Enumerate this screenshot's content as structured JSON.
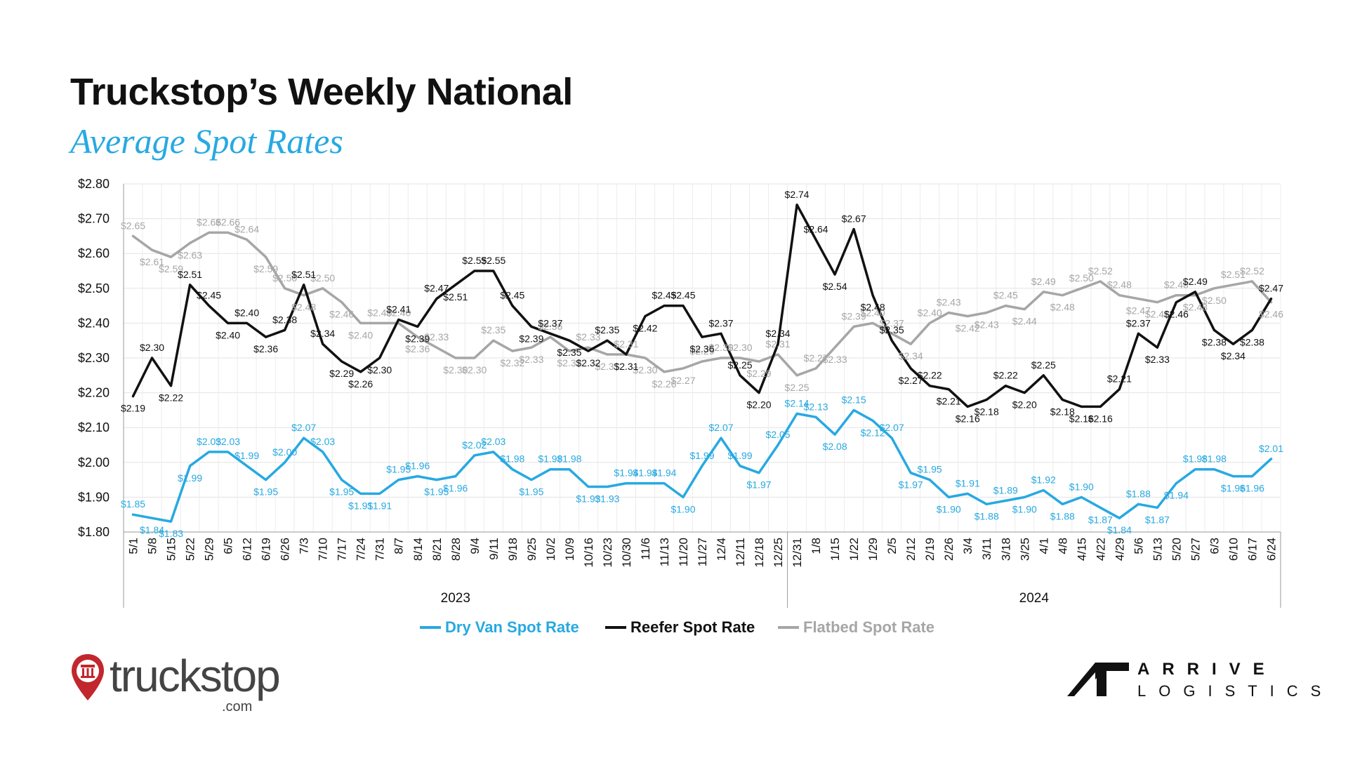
{
  "title": "Truckstop’s Weekly National",
  "subtitle": "Average Spot Rates",
  "colors": {
    "dry_van": "#27a9e1",
    "reefer": "#111111",
    "flatbed": "#a6a6a6"
  },
  "logos": {
    "truckstop_text": "truckstop",
    "truckstop_com": ".com",
    "arrive": "ARRIVE",
    "logistics": "LOGISTICS"
  },
  "chart_data": {
    "type": "line",
    "title": "Truckstop’s Weekly National Average Spot Rates",
    "xlabel": "",
    "ylabel": "",
    "ylim": [
      1.8,
      2.8
    ],
    "yticks": [
      "$1.80",
      "$1.90",
      "$2.00",
      "$2.10",
      "$2.20",
      "$2.30",
      "$2.40",
      "$2.50",
      "$2.60",
      "$2.70",
      "$2.80"
    ],
    "grid": true,
    "legend_position": "bottom",
    "categories": [
      "5/1",
      "5/8",
      "5/15",
      "5/22",
      "5/29",
      "6/5",
      "6/12",
      "6/19",
      "6/26",
      "7/3",
      "7/10",
      "7/17",
      "7/24",
      "7/31",
      "8/7",
      "8/14",
      "8/21",
      "8/28",
      "9/4",
      "9/11",
      "9/18",
      "9/25",
      "10/2",
      "10/9",
      "10/16",
      "10/23",
      "10/30",
      "11/6",
      "11/13",
      "11/20",
      "11/27",
      "12/4",
      "12/11",
      "12/18",
      "12/25",
      "12/31",
      "1/8",
      "1/15",
      "1/22",
      "1/29",
      "2/5",
      "2/12",
      "2/19",
      "2/26",
      "3/4",
      "3/11",
      "3/18",
      "3/25",
      "4/1",
      "4/8",
      "4/15",
      "4/22",
      "4/29",
      "5/6",
      "5/13",
      "5/20",
      "5/27",
      "6/3",
      "6/10",
      "6/17",
      "6/24"
    ],
    "year_groups": [
      {
        "label": "2023",
        "start": "5/1",
        "end": "12/25"
      },
      {
        "label": "2024",
        "start": "12/31",
        "end": "6/24"
      }
    ],
    "series": [
      {
        "name": "Dry Van Spot Rate",
        "color": "#27a9e1",
        "values": [
          1.85,
          1.84,
          1.83,
          1.99,
          2.03,
          2.03,
          1.99,
          1.95,
          2.0,
          2.07,
          2.03,
          1.95,
          1.91,
          1.91,
          1.95,
          1.96,
          1.95,
          1.96,
          2.02,
          2.03,
          1.98,
          1.95,
          1.98,
          1.98,
          1.93,
          1.93,
          1.94,
          1.94,
          1.94,
          1.9,
          1.99,
          2.07,
          1.99,
          1.97,
          2.05,
          2.14,
          2.13,
          2.08,
          2.15,
          2.12,
          2.07,
          1.97,
          1.95,
          1.9,
          1.91,
          1.88,
          1.89,
          1.9,
          1.92,
          1.88,
          1.9,
          1.87,
          1.84,
          1.88,
          1.87,
          1.94,
          1.98,
          1.98,
          1.96,
          1.96,
          2.01
        ]
      },
      {
        "name": "Reefer Spot Rate",
        "color": "#111111",
        "values": [
          2.19,
          2.3,
          2.22,
          2.51,
          2.45,
          2.4,
          2.4,
          2.36,
          2.38,
          2.51,
          2.34,
          2.29,
          2.26,
          2.3,
          2.41,
          2.39,
          2.47,
          2.51,
          2.55,
          2.55,
          2.45,
          2.39,
          2.37,
          2.35,
          2.32,
          2.35,
          2.31,
          2.42,
          2.45,
          2.45,
          2.36,
          2.37,
          2.25,
          2.2,
          2.34,
          2.74,
          2.64,
          2.54,
          2.67,
          2.48,
          2.35,
          2.27,
          2.22,
          2.21,
          2.16,
          2.18,
          2.22,
          2.2,
          2.25,
          2.18,
          2.16,
          2.16,
          2.21,
          2.37,
          2.33,
          2.46,
          2.49,
          2.38,
          2.34,
          2.38,
          2.47
        ]
      },
      {
        "name": "Flatbed Spot Rate",
        "color": "#a6a6a6",
        "values": [
          2.65,
          2.61,
          2.59,
          2.63,
          2.66,
          2.66,
          2.64,
          2.59,
          2.5,
          2.48,
          2.5,
          2.46,
          2.4,
          2.4,
          2.4,
          2.36,
          2.33,
          2.3,
          2.3,
          2.35,
          2.32,
          2.33,
          2.36,
          2.32,
          2.33,
          2.31,
          2.31,
          2.3,
          2.26,
          2.27,
          2.29,
          2.3,
          2.3,
          2.29,
          2.31,
          2.25,
          2.27,
          2.33,
          2.39,
          2.4,
          2.37,
          2.34,
          2.4,
          2.43,
          2.42,
          2.43,
          2.45,
          2.44,
          2.49,
          2.48,
          2.5,
          2.52,
          2.48,
          2.47,
          2.46,
          2.48,
          2.48,
          2.5,
          2.51,
          2.52,
          2.46
        ]
      }
    ]
  }
}
